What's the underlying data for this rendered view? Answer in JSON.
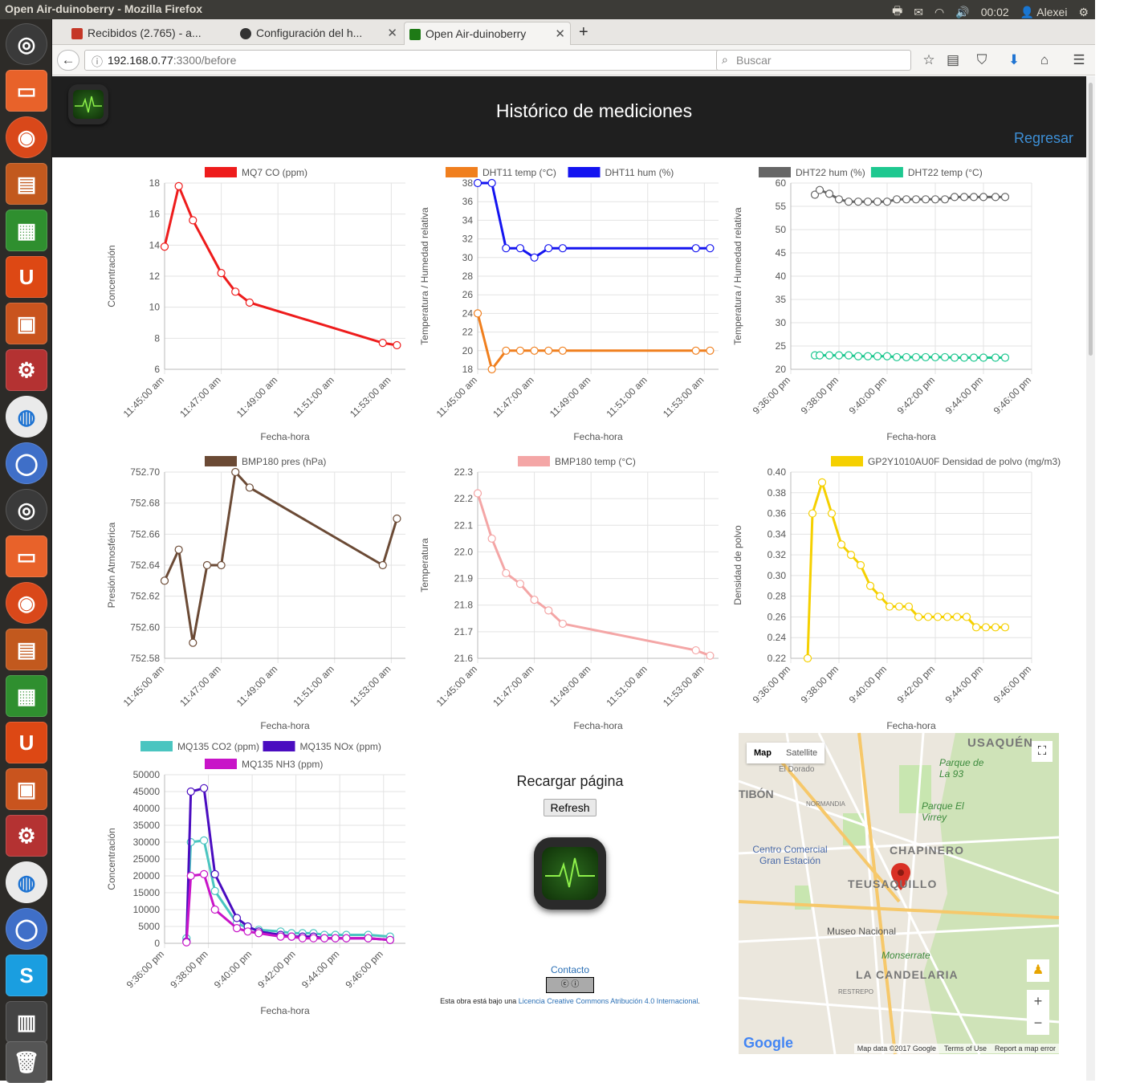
{
  "window": {
    "title": "Open Air-duinoberry - Mozilla Firefox",
    "time": "00:02",
    "user": "Alexei"
  },
  "tabs": [
    {
      "label": "Recibidos (2.765) - a...",
      "color": "#c53727"
    },
    {
      "label": "Configuración del h...",
      "color": "#333333"
    },
    {
      "label": "Open Air-duinoberry",
      "color": "#1e7a16"
    }
  ],
  "nav": {
    "url_host": "192.168.0.77",
    "url_rest": ":3300/before",
    "search_placeholder": "Buscar"
  },
  "page": {
    "title": "Histórico de mediciones",
    "back_link": "Regresar"
  },
  "middle": {
    "reload_title": "Recargar página",
    "refresh_label": "Refresh",
    "contact": "Contacto",
    "license_pre": "Esta obra está bajo una ",
    "license_link": "Licencia Creative Commons Atribución 4.0 Internacional",
    "license_post": "."
  },
  "map": {
    "tab_map": "Map",
    "tab_satellite": "Satellite",
    "labels": [
      "USAQUÉN",
      "Parque de La 93",
      "Parque El Virrey",
      "CHAPINERO",
      "Centro Comercial Gran Estación",
      "TEUSAQUILLO",
      "Museo Nacional",
      "Monserrate",
      "LA CANDELARIA",
      "NORMANDIA",
      "RESTREPO",
      "TIBÓN",
      "El Dorado"
    ],
    "google": "Google",
    "footer": [
      "Map data ©2017 Google",
      "Terms of Use",
      "Report a map error"
    ]
  },
  "chart_data": [
    {
      "type": "line",
      "id": "c1",
      "xlabel": "Fecha-hora",
      "ylabel": "Concentración",
      "ylim": [
        6,
        18
      ],
      "yticks": [
        6,
        8,
        10,
        12,
        14,
        16,
        18
      ],
      "xlim": [
        0,
        8.5
      ],
      "xticks": [
        0,
        2,
        4,
        6,
        8
      ],
      "xticklabels": [
        "11:45:00 am",
        "11:47:00 am",
        "11:49:00 am",
        "11:51:00 am",
        "11:53:00 am"
      ],
      "series": [
        {
          "name": "MQ7 CO (ppm)",
          "color": "#ee1c1c",
          "x": [
            0,
            0.5,
            1,
            2,
            2.5,
            3,
            7.7,
            8.2
          ],
          "y": [
            13.9,
            17.8,
            15.6,
            12.2,
            11,
            10.3,
            7.7,
            7.55
          ]
        }
      ]
    },
    {
      "type": "line",
      "id": "c2",
      "xlabel": "Fecha-hora",
      "ylabel": "Temperatura / Humedad relativa",
      "ylim": [
        18,
        38
      ],
      "yticks": [
        18,
        20,
        22,
        24,
        26,
        28,
        30,
        32,
        34,
        36,
        38
      ],
      "xlim": [
        0,
        8.5
      ],
      "xticks": [
        0,
        2,
        4,
        6,
        8
      ],
      "xticklabels": [
        "11:45:00 am",
        "11:47:00 am",
        "11:49:00 am",
        "11:51:00 am",
        "11:53:00 am"
      ],
      "series": [
        {
          "name": "DHT11 temp (°C)",
          "color": "#f07f1e",
          "x": [
            0,
            0.5,
            1,
            1.5,
            2,
            2.5,
            3,
            7.7,
            8.2
          ],
          "y": [
            24,
            18,
            20,
            20,
            20,
            20,
            20,
            20,
            20
          ]
        },
        {
          "name": "DHT11 hum (%)",
          "color": "#1414f0",
          "x": [
            0,
            0.5,
            1,
            1.5,
            2,
            2.5,
            3,
            7.7,
            8.2
          ],
          "y": [
            38,
            38,
            31,
            31,
            30,
            31,
            31,
            31,
            31
          ]
        }
      ]
    },
    {
      "type": "line",
      "id": "c3",
      "xlabel": "Fecha-hora",
      "ylabel": "Temperatura / Humedad relativa",
      "ylim": [
        20,
        60
      ],
      "yticks": [
        20,
        25,
        30,
        35,
        40,
        45,
        50,
        55,
        60
      ],
      "xlim": [
        0,
        10
      ],
      "xticks": [
        0,
        2,
        4,
        6,
        8,
        10
      ],
      "xticklabels": [
        "9:36:00 pm",
        "9:38:00 pm",
        "9:40:00 pm",
        "9:42:00 pm",
        "9:44:00 pm",
        "9:46:00 pm"
      ],
      "series": [
        {
          "name": "DHT22 hum (%)",
          "color": "#666666",
          "x": [
            1,
            1.2,
            1.6,
            2,
            2.4,
            2.8,
            3.2,
            3.6,
            4,
            4.4,
            4.8,
            5.2,
            5.6,
            6,
            6.4,
            6.8,
            7.2,
            7.6,
            8,
            8.5,
            8.9
          ],
          "y": [
            57.5,
            58.5,
            57.7,
            56.5,
            56,
            56,
            56,
            56,
            56,
            56.5,
            56.5,
            56.5,
            56.5,
            56.5,
            56.5,
            57,
            57,
            57,
            57,
            57,
            57
          ]
        },
        {
          "name": "DHT22 temp (°C)",
          "color": "#1ec890",
          "x": [
            1,
            1.2,
            1.6,
            2,
            2.4,
            2.8,
            3.2,
            3.6,
            4,
            4.4,
            4.8,
            5.2,
            5.6,
            6,
            6.4,
            6.8,
            7.2,
            7.6,
            8,
            8.5,
            8.9
          ],
          "y": [
            23,
            23,
            23,
            23,
            23,
            22.8,
            22.8,
            22.8,
            22.8,
            22.6,
            22.6,
            22.6,
            22.6,
            22.6,
            22.6,
            22.5,
            22.5,
            22.5,
            22.5,
            22.5,
            22.5
          ]
        }
      ]
    },
    {
      "type": "line",
      "id": "c4",
      "xlabel": "Fecha-hora",
      "ylabel": "Presión Atmosférica",
      "ylim": [
        752.58,
        752.7
      ],
      "yticks": [
        752.58,
        752.6,
        752.62,
        752.64,
        752.66,
        752.68,
        752.7
      ],
      "xlim": [
        0,
        8.5
      ],
      "xticks": [
        0,
        2,
        4,
        6,
        8
      ],
      "xticklabels": [
        "11:45:00 am",
        "11:47:00 am",
        "11:49:00 am",
        "11:51:00 am",
        "11:53:00 am"
      ],
      "series": [
        {
          "name": "BMP180 pres (hPa)",
          "color": "#6b4a35",
          "x": [
            0,
            0.5,
            1,
            1.5,
            2,
            2.5,
            3,
            7.7,
            8.2
          ],
          "y": [
            752.63,
            752.65,
            752.59,
            752.64,
            752.64,
            752.7,
            752.69,
            752.64,
            752.67
          ]
        }
      ]
    },
    {
      "type": "line",
      "id": "c5",
      "xlabel": "Fecha-hora",
      "ylabel": "Temperatura",
      "ylim": [
        21.6,
        22.3
      ],
      "yticks": [
        21.6,
        21.7,
        21.8,
        21.9,
        22.0,
        22.1,
        22.2,
        22.3
      ],
      "xlim": [
        0,
        8.5
      ],
      "xticks": [
        0,
        2,
        4,
        6,
        8
      ],
      "xticklabels": [
        "11:45:00 am",
        "11:47:00 am",
        "11:49:00 am",
        "11:51:00 am",
        "11:53:00 am"
      ],
      "series": [
        {
          "name": "BMP180 temp (°C)",
          "color": "#f4a6a6",
          "x": [
            0,
            0.5,
            1,
            1.5,
            2,
            2.5,
            3,
            7.7,
            8.2
          ],
          "y": [
            22.22,
            22.05,
            21.92,
            21.88,
            21.82,
            21.78,
            21.73,
            21.63,
            21.61
          ]
        }
      ]
    },
    {
      "type": "line",
      "id": "c6",
      "xlabel": "Fecha-hora",
      "ylabel": "Densidad de polvo",
      "ylim": [
        0.22,
        0.4
      ],
      "yticks": [
        0.22,
        0.24,
        0.26,
        0.28,
        0.3,
        0.32,
        0.34,
        0.36,
        0.38,
        0.4
      ],
      "xlim": [
        0,
        10
      ],
      "xticks": [
        0,
        2,
        4,
        6,
        8,
        10
      ],
      "xticklabels": [
        "9:36:00 pm",
        "9:38:00 pm",
        "9:40:00 pm",
        "9:42:00 pm",
        "9:44:00 pm",
        "9:46:00 pm"
      ],
      "series": [
        {
          "name": "GP2Y1010AU0F Densidad de polvo (mg/m3)",
          "color": "#f5d000",
          "x": [
            0.7,
            0.9,
            1.3,
            1.7,
            2.1,
            2.5,
            2.9,
            3.3,
            3.7,
            4.1,
            4.5,
            4.9,
            5.3,
            5.7,
            6.1,
            6.5,
            6.9,
            7.3,
            7.7,
            8.1,
            8.5,
            8.9
          ],
          "y": [
            0.22,
            0.36,
            0.39,
            0.36,
            0.33,
            0.32,
            0.31,
            0.29,
            0.28,
            0.27,
            0.27,
            0.27,
            0.26,
            0.26,
            0.26,
            0.26,
            0.26,
            0.26,
            0.25,
            0.25,
            0.25,
            0.25
          ]
        }
      ]
    },
    {
      "type": "line",
      "id": "c7",
      "xlabel": "Fecha-hora",
      "ylabel": "Concentración",
      "ylim": [
        0,
        50000
      ],
      "yticks": [
        0,
        5000,
        10000,
        15000,
        20000,
        25000,
        30000,
        35000,
        40000,
        45000,
        50000
      ],
      "xlim": [
        0,
        11
      ],
      "xticks": [
        0,
        2,
        4,
        6,
        8,
        10
      ],
      "xticklabels": [
        "9:36:00 pm",
        "9:38:00 pm",
        "9:40:00 pm",
        "9:42:00 pm",
        "9:44:00 pm",
        "9:46:00 pm"
      ],
      "series": [
        {
          "name": "MQ135 CO2 (ppm)",
          "color": "#4ac5c0",
          "x": [
            1,
            1.2,
            1.8,
            2.3,
            3.3,
            3.8,
            4.3,
            5.3,
            5.8,
            6.3,
            6.8,
            7.3,
            7.8,
            8.3,
            9.3,
            10.3
          ],
          "y": [
            1500,
            30000,
            30500,
            15500,
            6000,
            4500,
            4000,
            3500,
            3000,
            3000,
            3000,
            2500,
            2500,
            2500,
            2500,
            2000
          ]
        },
        {
          "name": "MQ135 NOx (ppm)",
          "color": "#4a0cc0",
          "x": [
            1,
            1.2,
            1.8,
            2.3,
            3.3,
            3.8,
            4.3,
            5.3,
            5.8,
            6.3,
            6.8,
            7.3,
            7.8,
            8.3,
            9.3,
            10.3
          ],
          "y": [
            500,
            45000,
            46000,
            20500,
            7500,
            5000,
            3500,
            2500,
            2000,
            2000,
            2000,
            1500,
            1500,
            1500,
            1500,
            1000
          ]
        },
        {
          "name": "MQ135 NH3 (ppm)",
          "color": "#c814c8",
          "x": [
            1,
            1.2,
            1.8,
            2.3,
            3.3,
            3.8,
            4.3,
            5.3,
            5.8,
            6.3,
            6.8,
            7.3,
            7.8,
            8.3,
            9.3,
            10.3
          ],
          "y": [
            300,
            20000,
            20500,
            10000,
            4500,
            3500,
            3000,
            2000,
            2000,
            1500,
            1500,
            1500,
            1500,
            1500,
            1500,
            1000
          ]
        }
      ]
    }
  ]
}
